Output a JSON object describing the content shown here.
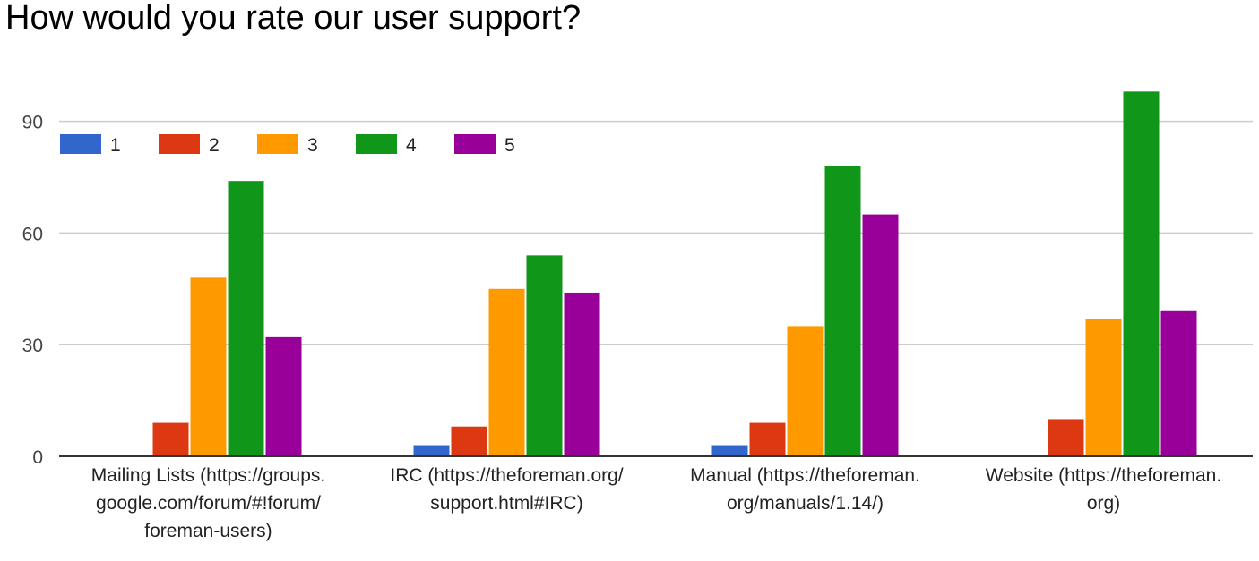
{
  "chart_data": {
    "type": "bar",
    "title": "How would you rate our user support?",
    "xlabel": "",
    "ylabel": "",
    "ylim": [
      0,
      100
    ],
    "yticks": [
      0,
      30,
      60,
      90
    ],
    "grid": true,
    "legend_position": "top-left",
    "categories": [
      [
        "Mailing Lists (https://groups.",
        "google.com/forum/#!forum/",
        "foreman-users)"
      ],
      [
        "IRC (https://theforeman.org/",
        "support.html#IRC)"
      ],
      [
        "Manual (https://theforeman.",
        "org/manuals/1.14/)"
      ],
      [
        "Website (https://theforeman.",
        "org)"
      ]
    ],
    "series": [
      {
        "name": "1",
        "color": "#3366cc",
        "values": [
          0,
          3,
          3,
          0
        ]
      },
      {
        "name": "2",
        "color": "#dc3912",
        "values": [
          9,
          8,
          9,
          10
        ]
      },
      {
        "name": "3",
        "color": "#ff9900",
        "values": [
          48,
          45,
          35,
          37
        ]
      },
      {
        "name": "4",
        "color": "#109618",
        "values": [
          74,
          54,
          78,
          98
        ]
      },
      {
        "name": "5",
        "color": "#990099",
        "values": [
          32,
          44,
          65,
          39
        ]
      }
    ]
  }
}
